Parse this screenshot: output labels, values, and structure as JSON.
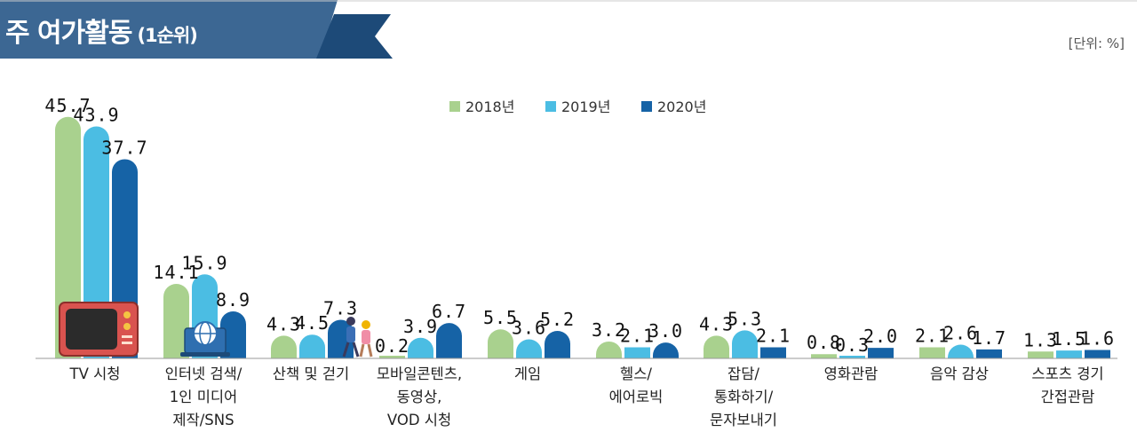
{
  "header": {
    "title": "주 여가활동",
    "subtitle": "(1순위)",
    "unit_label": "[단위: %]"
  },
  "colors": {
    "banner": "#3c6793",
    "banner_accent": "#1d4a78",
    "y2018": "#a9d18e",
    "y2019": "#4bbde3",
    "y2020": "#1663a6"
  },
  "chart_data": {
    "type": "bar",
    "title": "주 여가활동 (1순위)",
    "ylabel": "%",
    "ylim": [
      0,
      46
    ],
    "legend_position": "top-center",
    "categories": [
      [
        "TV 시청"
      ],
      [
        "인터넷 검색/",
        "1인 미디어",
        "제작/SNS"
      ],
      [
        "산책 및 걷기"
      ],
      [
        "모바일콘텐츠,",
        "동영상,",
        "VOD 시청"
      ],
      [
        "게임"
      ],
      [
        "헬스/",
        "에어로빅"
      ],
      [
        "잡담/",
        "통화하기/",
        "문자보내기"
      ],
      [
        "영화관람"
      ],
      [
        "음악 감상"
      ],
      [
        "스포츠 경기",
        "간접관람"
      ]
    ],
    "series": [
      {
        "name": "2018년",
        "values": [
          45.7,
          14.1,
          4.3,
          0.2,
          5.5,
          3.2,
          4.3,
          0.8,
          2.1,
          1.3
        ]
      },
      {
        "name": "2019년",
        "values": [
          43.9,
          15.9,
          4.5,
          3.9,
          3.6,
          2.1,
          5.3,
          0.3,
          2.6,
          1.5
        ]
      },
      {
        "name": "2020년",
        "values": [
          37.7,
          8.9,
          7.3,
          6.7,
          5.2,
          3.0,
          2.1,
          2.0,
          1.7,
          1.6
        ]
      }
    ]
  }
}
